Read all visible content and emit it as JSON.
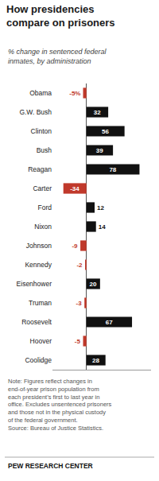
{
  "chart_data": {
    "type": "bar",
    "orientation": "horizontal",
    "title": "How presidencies\ncompare on prisoners",
    "subtitle": "% change in sentenced federal\ninmates, by administration",
    "note": "Note: Figures reflect changes in\nend-of-year prison population from\neach president’s first to last year in\noffice. Excludes unsentenced prisoners\nand those not in the physical custody\nof the federal government.\nSource: Bureau of Justice Statistics.",
    "source": "PEW RESEARCH CENTER",
    "categories": [
      "Obama",
      "G.W. Bush",
      "Clinton",
      "Bush",
      "Reagan",
      "Carter",
      "Ford",
      "Nixon",
      "Johnson",
      "Kennedy",
      "Eisenhower",
      "Truman",
      "Roosevelt",
      "Hoover",
      "Coolidge"
    ],
    "values": [
      -5,
      32,
      56,
      39,
      78,
      -34,
      12,
      14,
      -9,
      -2,
      20,
      -3,
      67,
      -5,
      28
    ],
    "value_labels": [
      "-5%",
      "32",
      "56",
      "39",
      "78",
      "-34",
      "12",
      "14",
      "-9",
      "-2",
      "20",
      "-3",
      "67",
      "-5",
      "28"
    ],
    "colors": [
      "#c0392b",
      "#111111",
      "#111111",
      "#111111",
      "#111111",
      "#c0392b",
      "#111111",
      "#111111",
      "#c0392b",
      "#c0392b",
      "#111111",
      "#c0392b",
      "#111111",
      "#c0392b",
      "#111111"
    ],
    "data_labels": true,
    "xlim": [
      -50,
      95
    ],
    "tick_labels": "y",
    "grid": false
  }
}
